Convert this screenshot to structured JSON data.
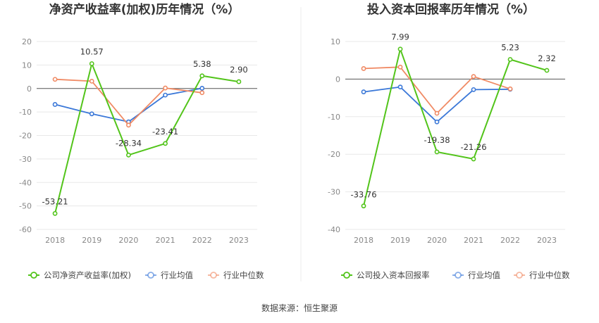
{
  "source_text": "数据来源：恒生聚源",
  "chart_data": [
    {
      "type": "line",
      "title": "净资产收益率(加权)历年情况（%）",
      "categories": [
        "2018",
        "2019",
        "2020",
        "2021",
        "2022",
        "2023"
      ],
      "ylim": [
        -60,
        20
      ],
      "yticks": [
        20,
        10,
        0,
        -10,
        -20,
        -30,
        -40,
        -50,
        -60
      ],
      "series": [
        {
          "name": "公司净资产收益率(加权)",
          "color": "#52c41a",
          "values": [
            -53.21,
            10.57,
            -28.34,
            -23.41,
            5.38,
            2.9
          ],
          "labels": [
            "-53.21",
            "10.57",
            "-28.34",
            "-23.41",
            "5.38",
            "2.90"
          ]
        },
        {
          "name": "行业均值",
          "color": "#3b78d8",
          "values": [
            -6.8,
            -10.8,
            -14.2,
            -2.8,
            0.1,
            null
          ]
        },
        {
          "name": "行业中位数",
          "color": "#f08a64",
          "values": [
            3.9,
            3.1,
            -15.6,
            0.2,
            -1.8,
            null
          ]
        }
      ]
    },
    {
      "type": "line",
      "title": "投入资本回报率历年情况（%）",
      "categories": [
        "2018",
        "2019",
        "2020",
        "2021",
        "2022",
        "2023"
      ],
      "ylim": [
        -40,
        10
      ],
      "yticks": [
        10,
        0,
        -10,
        -20,
        -30,
        -40
      ],
      "series": [
        {
          "name": "公司投入资本回报率",
          "color": "#52c41a",
          "values": [
            -33.76,
            7.99,
            -19.38,
            -21.26,
            5.23,
            2.32
          ],
          "labels": [
            "-33.76",
            "7.99",
            "-19.38",
            "-21.26",
            "5.23",
            "2.32"
          ]
        },
        {
          "name": "行业均值",
          "color": "#3b78d8",
          "values": [
            -3.4,
            -2.1,
            -11.4,
            -2.8,
            -2.7,
            null
          ]
        },
        {
          "name": "行业中位数",
          "color": "#f08a64",
          "values": [
            2.8,
            3.2,
            -9.1,
            0.7,
            -2.6,
            null
          ]
        }
      ]
    }
  ]
}
